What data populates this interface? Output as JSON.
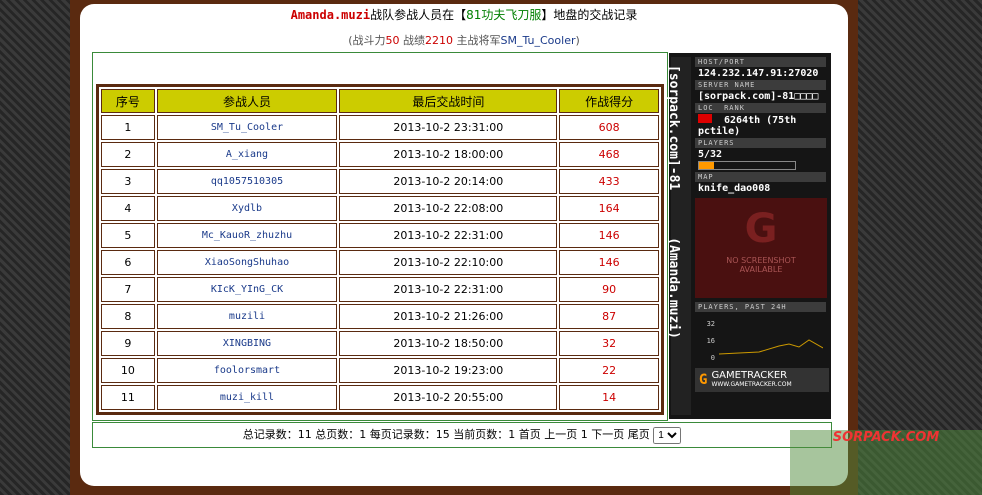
{
  "header": {
    "title": [
      {
        "text": "Amanda.muzi",
        "color": "#cc0000"
      },
      {
        "text": "战队参战人员在【",
        "color": "#000000"
      },
      {
        "text": "81功夫飞刀服",
        "color": "#008000"
      },
      {
        "text": "】地盘的交战记录",
        "color": "#000000"
      }
    ],
    "subtitle": [
      {
        "text": "(战斗力",
        "color": "#555555"
      },
      {
        "text": "50",
        "color": "#cc0000"
      },
      {
        "text": " 战绩",
        "color": "#555555"
      },
      {
        "text": "2210",
        "color": "#cc0000"
      },
      {
        "text": " 主战将军",
        "color": "#555555"
      },
      {
        "text": "SM_Tu_Cooler",
        "color": "#1a3a8a"
      },
      {
        "text": ")",
        "color": "#555555"
      }
    ]
  },
  "table": {
    "columns": [
      "序号",
      "参战人员",
      "最后交战时间",
      "作战得分"
    ],
    "rows": [
      [
        "1",
        "SM_Tu_Cooler",
        "2013-10-2 23:31:00",
        "608"
      ],
      [
        "2",
        "A_xiang",
        "2013-10-2 18:00:00",
        "468"
      ],
      [
        "3",
        "qq1057510305",
        "2013-10-2 20:14:00",
        "433"
      ],
      [
        "4",
        "Xydlb",
        "2013-10-2 22:08:00",
        "164"
      ],
      [
        "5",
        "Mc_KauoR_zhuzhu",
        "2013-10-2 22:31:00",
        "146"
      ],
      [
        "6",
        "XiaoSongShuhao",
        "2013-10-2 22:10:00",
        "146"
      ],
      [
        "7",
        "KIcK_YInG_CK",
        "2013-10-2 22:31:00",
        "90"
      ],
      [
        "8",
        "muzili",
        "2013-10-2 21:26:00",
        "87"
      ],
      [
        "9",
        "XINGBING",
        "2013-10-2 18:50:00",
        "32"
      ],
      [
        "10",
        "foolorsmart",
        "2013-10-2 19:23:00",
        "22"
      ],
      [
        "11",
        "muzi_kill",
        "2013-10-2 20:55:00",
        "14"
      ]
    ]
  },
  "footer": {
    "info": "总记录数：11 总页数：1 每页记录数：15 当前页数：1",
    "links": [
      "首页",
      "上一页",
      "1",
      "下一页",
      "尾页"
    ],
    "select": "1"
  },
  "widget": {
    "side_title": "[sorpack.com]-81",
    "side_subtitle": "(Amanda.muzi)",
    "host_label": "HOST/PORT",
    "host": "124.232.147.91:27020",
    "server_label": "SERVER NAME",
    "server": "[sorpack.com]-81□□□□",
    "loc_label": "LOC",
    "rank_label": "RANK",
    "rank": "6264th (75th pctile)",
    "players_label": "PLAYERS",
    "players": "5/32",
    "map_label": "MAP",
    "map": "knife_dao008",
    "no_shot": "NO SCREENSHOT AVAILABLE",
    "history_label": "PLAYERS, PAST 24H",
    "history_ticks": [
      "32",
      "16",
      "0"
    ],
    "brand": "GAMETRACKER",
    "brand_url": "WWW.GAMETRACKER.COM"
  },
  "watermark": "SORPACK.COM"
}
